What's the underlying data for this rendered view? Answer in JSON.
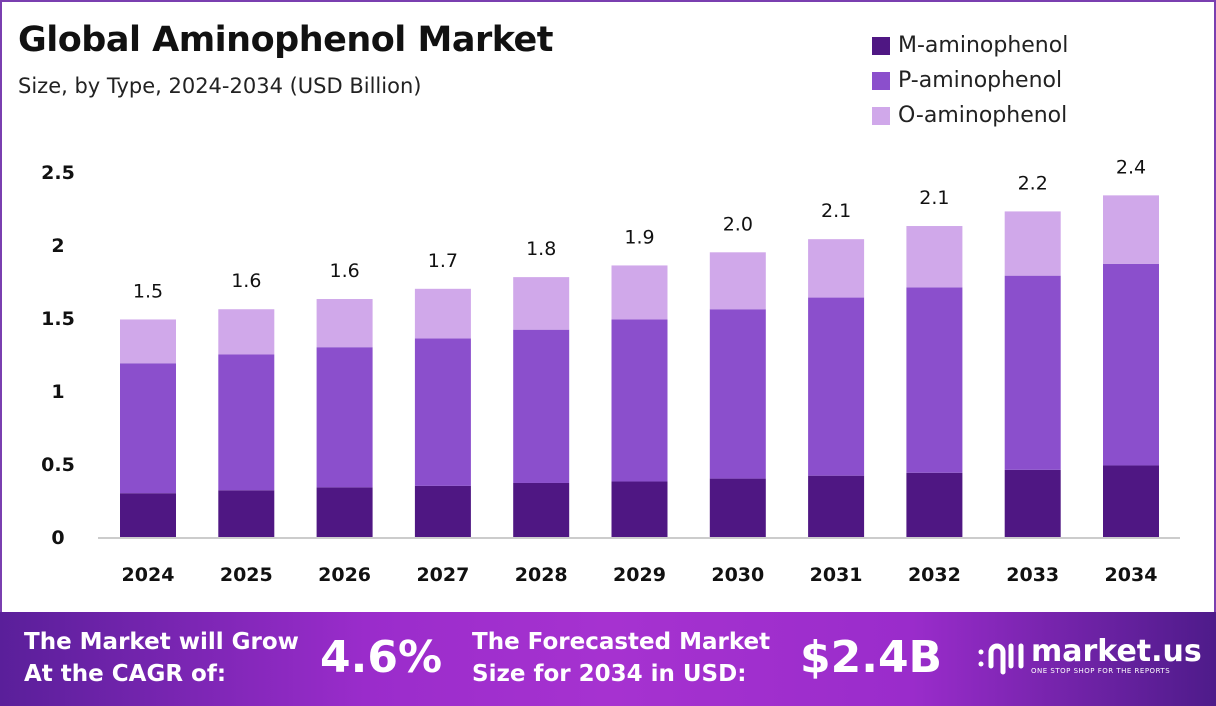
{
  "chart_data": {
    "type": "bar",
    "stacked": true,
    "title": "Global Aminophenol Market",
    "subtitle": "Size, by Type, 2024-2034 (USD Billion)",
    "categories": [
      "2024",
      "2025",
      "2026",
      "2027",
      "2028",
      "2029",
      "2030",
      "2031",
      "2032",
      "2033",
      "2034"
    ],
    "series": [
      {
        "name": "M-aminophenol",
        "color": "#4f1783",
        "values": [
          0.3,
          0.32,
          0.34,
          0.35,
          0.37,
          0.38,
          0.4,
          0.42,
          0.44,
          0.46,
          0.49
        ]
      },
      {
        "name": "P-aminophenol",
        "color": "#8b4fcc",
        "values": [
          0.89,
          0.93,
          0.96,
          1.01,
          1.05,
          1.11,
          1.16,
          1.22,
          1.27,
          1.33,
          1.38
        ]
      },
      {
        "name": "O-aminophenol",
        "color": "#d0a8ea",
        "values": [
          0.3,
          0.31,
          0.33,
          0.34,
          0.36,
          0.37,
          0.39,
          0.4,
          0.42,
          0.44,
          0.47
        ]
      }
    ],
    "totals_labels": [
      "1.5",
      "1.6",
      "1.6",
      "1.7",
      "1.8",
      "1.9",
      "2.0",
      "2.1",
      "2.1",
      "2.2",
      "2.4"
    ],
    "yticks": [
      "0",
      "0.5",
      "1",
      "1.5",
      "2",
      "2.5"
    ],
    "ylim": [
      0,
      2.5
    ],
    "grid": false,
    "legend": "top-right"
  },
  "footer": {
    "cagr_line1": "The Market will Grow",
    "cagr_line2": "At the CAGR of:",
    "cagr_value": "4.6%",
    "forecast_line1": "The Forecasted Market",
    "forecast_line2": "Size for 2034 in USD:",
    "forecast_value": "$2.4B",
    "logo_name": "market.us",
    "logo_tagline": "ONE STOP SHOP FOR THE REPORTS"
  }
}
